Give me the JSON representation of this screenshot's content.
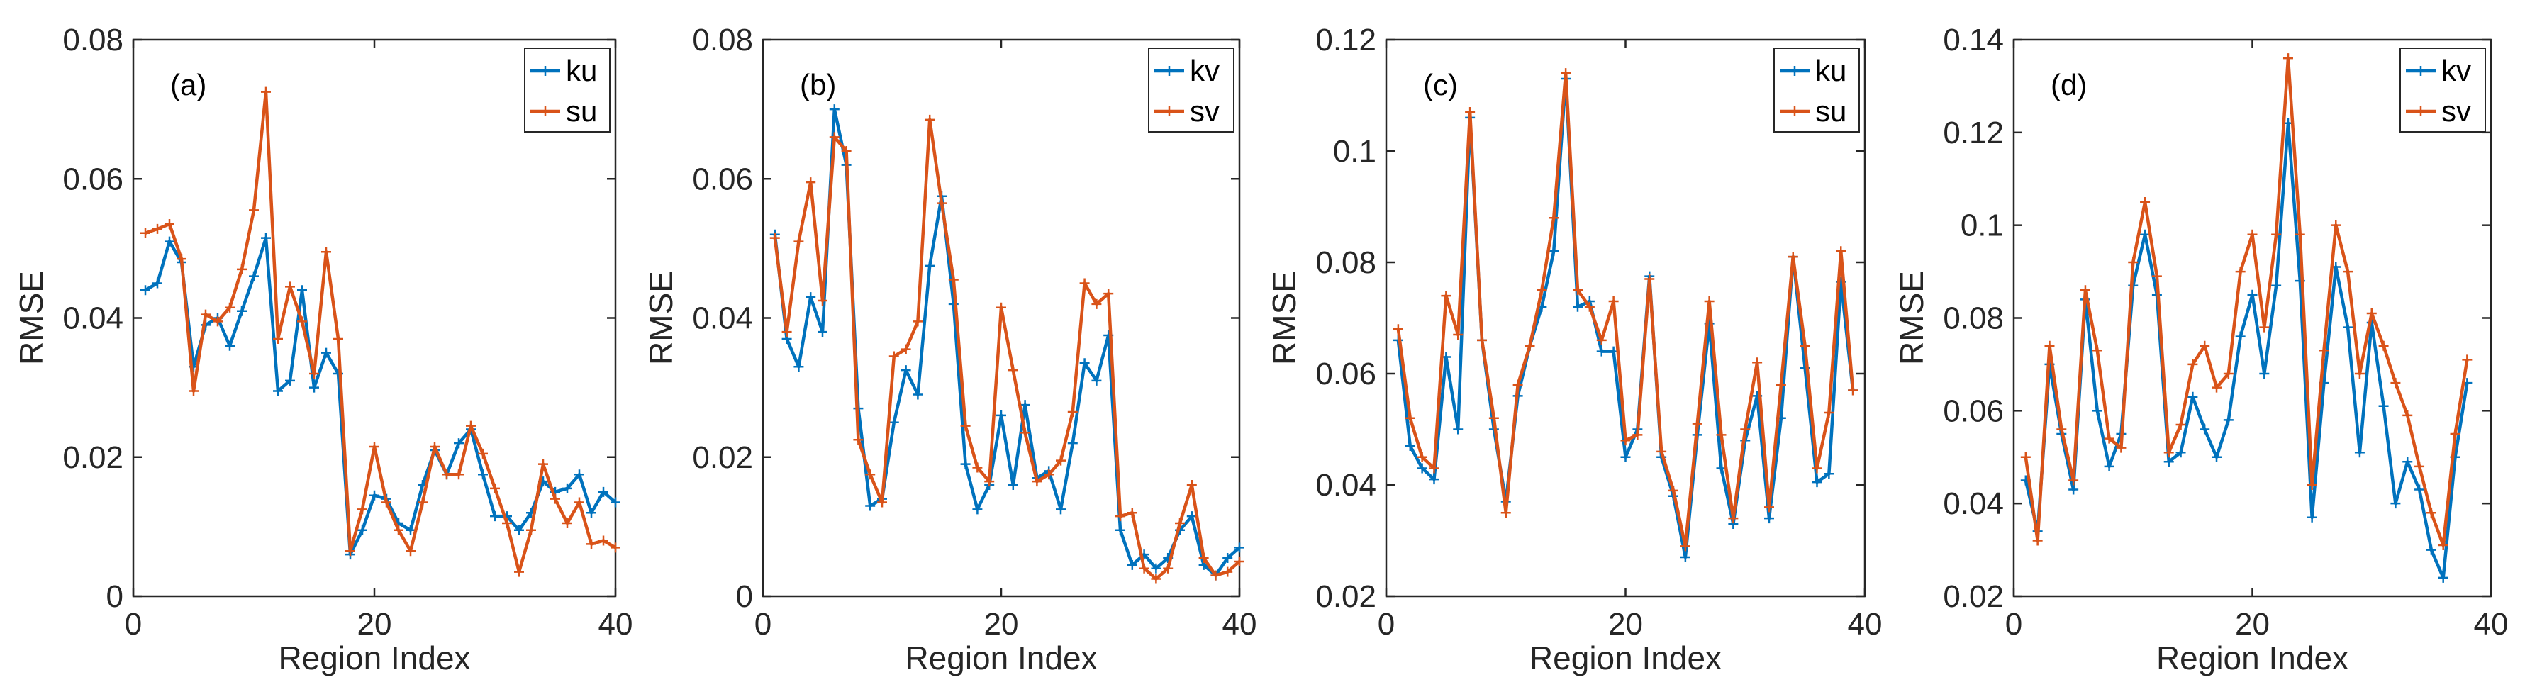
{
  "chart_data": [
    {
      "type": "line",
      "panel_label": "(a)",
      "xlabel": "Region Index",
      "ylabel": "RMSE",
      "xlim": [
        0,
        40
      ],
      "ylim": [
        0,
        0.08
      ],
      "xticks": [
        0,
        20,
        40
      ],
      "yticks": [
        0,
        0.02,
        0.04,
        0.06,
        0.08
      ],
      "ytick_labels": [
        "0",
        "0.02",
        "0.04",
        "0.06",
        "0.08"
      ],
      "legend_position": "top-right",
      "series": [
        {
          "name": "ku",
          "color": "#0072BD",
          "values": [
            0.044,
            0.045,
            0.051,
            0.048,
            0.033,
            0.039,
            0.04,
            0.036,
            0.041,
            0.046,
            0.0515,
            0.0295,
            0.031,
            0.044,
            0.03,
            0.035,
            0.032,
            0.006,
            0.0095,
            0.0145,
            0.014,
            0.0105,
            0.0095,
            0.016,
            0.021,
            0.0175,
            0.022,
            0.024,
            0.0175,
            0.0115,
            0.0115,
            0.0095,
            0.012,
            0.0165,
            0.015,
            0.0155,
            0.0175,
            0.012,
            0.015,
            0.0135
          ]
        },
        {
          "name": "su",
          "color": "#D95319",
          "values": [
            0.0522,
            0.0528,
            0.0535,
            0.0485,
            0.0295,
            0.0405,
            0.0395,
            0.0415,
            0.047,
            0.0555,
            0.0725,
            0.037,
            0.0445,
            0.0395,
            0.032,
            0.0495,
            0.037,
            0.0065,
            0.0125,
            0.0215,
            0.0135,
            0.0095,
            0.0065,
            0.0135,
            0.0215,
            0.0175,
            0.0175,
            0.0245,
            0.0205,
            0.0155,
            0.0105,
            0.0035,
            0.0095,
            0.019,
            0.014,
            0.0105,
            0.0135,
            0.0075,
            0.008,
            0.007
          ]
        }
      ]
    },
    {
      "type": "line",
      "panel_label": "(b)",
      "xlabel": "Region Index",
      "ylabel": "RMSE",
      "xlim": [
        0,
        40
      ],
      "ylim": [
        0,
        0.08
      ],
      "xticks": [
        0,
        20,
        40
      ],
      "yticks": [
        0,
        0.02,
        0.04,
        0.06,
        0.08
      ],
      "ytick_labels": [
        "0",
        "0.02",
        "0.04",
        "0.06",
        "0.08"
      ],
      "legend_position": "top-right",
      "series": [
        {
          "name": "kv",
          "color": "#0072BD",
          "values": [
            0.052,
            0.037,
            0.033,
            0.043,
            0.038,
            0.07,
            0.062,
            0.027,
            0.013,
            0.014,
            0.025,
            0.0325,
            0.029,
            0.0475,
            0.0575,
            0.042,
            0.019,
            0.0125,
            0.016,
            0.026,
            0.016,
            0.0275,
            0.017,
            0.018,
            0.0125,
            0.022,
            0.0335,
            0.031,
            0.0375,
            0.0095,
            0.0045,
            0.006,
            0.004,
            0.0055,
            0.0095,
            0.0115,
            0.0045,
            0.003,
            0.0055,
            0.007
          ]
        },
        {
          "name": "sv",
          "color": "#D95319",
          "values": [
            0.0515,
            0.038,
            0.051,
            0.0595,
            0.0425,
            0.066,
            0.064,
            0.0225,
            0.0175,
            0.0135,
            0.0345,
            0.0355,
            0.0395,
            0.0685,
            0.0565,
            0.0455,
            0.0245,
            0.0185,
            0.0165,
            0.0415,
            0.0325,
            0.0235,
            0.0165,
            0.0175,
            0.0195,
            0.0265,
            0.045,
            0.042,
            0.0435,
            0.0115,
            0.012,
            0.004,
            0.0025,
            0.004,
            0.0105,
            0.016,
            0.0055,
            0.003,
            0.0035,
            0.005
          ]
        }
      ]
    },
    {
      "type": "line",
      "panel_label": "(c)",
      "xlabel": "Region Index",
      "ylabel": "RMSE",
      "xlim": [
        0,
        40
      ],
      "ylim": [
        0.02,
        0.12
      ],
      "xticks": [
        0,
        20,
        40
      ],
      "yticks": [
        0.02,
        0.04,
        0.06,
        0.08,
        0.1,
        0.12
      ],
      "ytick_labels": [
        "0.02",
        "0.04",
        "0.06",
        "0.08",
        "0.1",
        "0.12"
      ],
      "legend_position": "top-right",
      "series": [
        {
          "name": "ku",
          "color": "#0072BD",
          "values": [
            0.066,
            0.047,
            0.043,
            0.041,
            0.063,
            0.05,
            0.106,
            0.066,
            0.05,
            0.037,
            0.056,
            0.065,
            0.072,
            0.082,
            0.113,
            0.072,
            0.073,
            0.064,
            0.064,
            0.045,
            0.05,
            0.0775,
            0.045,
            0.038,
            0.027,
            0.049,
            0.069,
            0.043,
            0.033,
            0.048,
            0.056,
            0.034,
            0.052,
            0.081,
            0.061,
            0.0405,
            0.042,
            0.0765,
            0.057
          ]
        },
        {
          "name": "su",
          "color": "#D95319",
          "values": [
            0.068,
            0.052,
            0.045,
            0.043,
            0.074,
            0.067,
            0.107,
            0.066,
            0.052,
            0.035,
            0.058,
            0.065,
            0.075,
            0.088,
            0.114,
            0.075,
            0.072,
            0.066,
            0.073,
            0.048,
            0.049,
            0.077,
            0.046,
            0.039,
            0.029,
            0.051,
            0.073,
            0.049,
            0.034,
            0.05,
            0.062,
            0.036,
            0.058,
            0.081,
            0.065,
            0.043,
            0.053,
            0.082,
            0.057
          ]
        }
      ]
    },
    {
      "type": "line",
      "panel_label": "(d)",
      "xlabel": "Region Index",
      "ylabel": "RMSE",
      "xlim": [
        0,
        40
      ],
      "ylim": [
        0.02,
        0.14
      ],
      "xticks": [
        0,
        20,
        40
      ],
      "yticks": [
        0.02,
        0.04,
        0.06,
        0.08,
        0.1,
        0.12,
        0.14
      ],
      "ytick_labels": [
        "0.02",
        "0.04",
        "0.06",
        "0.08",
        "0.1",
        "0.12",
        "0.14"
      ],
      "legend_position": "top-right",
      "series": [
        {
          "name": "kv",
          "color": "#0072BD",
          "values": [
            0.045,
            0.034,
            0.07,
            0.055,
            0.043,
            0.084,
            0.06,
            0.048,
            0.055,
            0.087,
            0.098,
            0.085,
            0.049,
            0.051,
            0.063,
            0.056,
            0.05,
            0.058,
            0.076,
            0.085,
            0.068,
            0.087,
            0.122,
            0.088,
            0.037,
            0.066,
            0.091,
            0.078,
            0.051,
            0.079,
            0.061,
            0.04,
            0.049,
            0.043,
            0.03,
            0.024,
            0.05,
            0.066
          ]
        },
        {
          "name": "sv",
          "color": "#D95319",
          "values": [
            0.05,
            0.032,
            0.074,
            0.056,
            0.045,
            0.086,
            0.073,
            0.054,
            0.052,
            0.092,
            0.105,
            0.089,
            0.051,
            0.057,
            0.07,
            0.074,
            0.065,
            0.068,
            0.09,
            0.098,
            0.078,
            0.098,
            0.136,
            0.098,
            0.044,
            0.073,
            0.1,
            0.09,
            0.068,
            0.081,
            0.074,
            0.066,
            0.059,
            0.048,
            0.038,
            0.031,
            0.055,
            0.071
          ]
        }
      ]
    }
  ]
}
